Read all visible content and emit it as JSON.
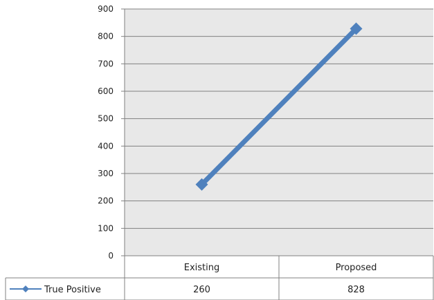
{
  "chart_data": {
    "type": "line",
    "title": "",
    "xlabel": "",
    "ylabel": "",
    "categories": [
      "Existing",
      "Proposed"
    ],
    "series": [
      {
        "name": "True Positive",
        "values": [
          260,
          828
        ]
      }
    ],
    "ylim": [
      0,
      900
    ],
    "yticks": [
      0,
      100,
      200,
      300,
      400,
      500,
      600,
      700,
      800,
      900
    ],
    "ytick_labels": [
      "0",
      "100",
      "200",
      "300",
      "400",
      "500",
      "600",
      "700",
      "800",
      "900"
    ],
    "grid": true,
    "legend_placement": "data-table-left",
    "data_table": true,
    "colors": {
      "series": "#4f81bd",
      "plot_background": "#e8e8e8",
      "gridline": "#808080"
    }
  }
}
